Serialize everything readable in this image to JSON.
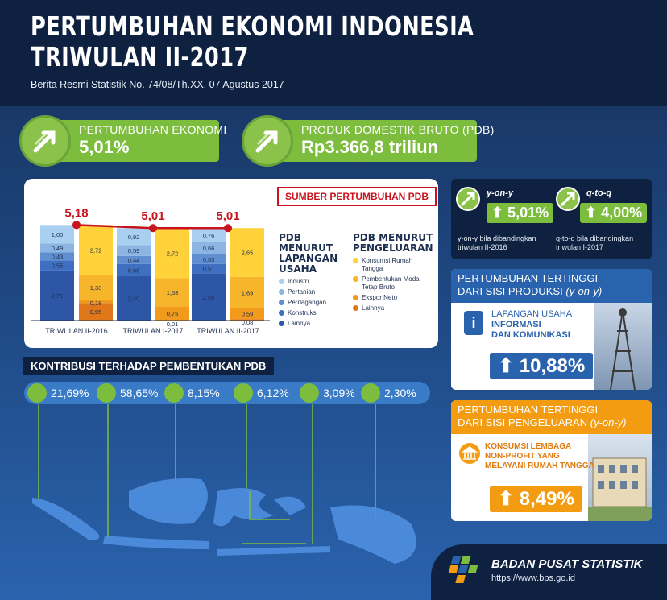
{
  "header": {
    "title_line1": "PERTUMBUHAN EKONOMI INDONESIA",
    "title_line2": "TRIWULAN II-2017",
    "subtitle": "Berita Resmi Statistik No. 74/08/Th.XX, 07 Agustus 2017"
  },
  "kpis": [
    {
      "label": "PERTUMBUHAN EKONOMI",
      "value": "5,01%"
    },
    {
      "label": "PRODUK DOMESTIK BRUTO (PDB)",
      "value": "Rp3.366,8 triliun"
    }
  ],
  "source_title": "SUMBER PERTUMBUHAN PDB",
  "legend_lapangan": {
    "head1": "PDB MENURUT",
    "head2": "LAPANGAN",
    "head3": "USAHA",
    "items": [
      "Industri",
      "Pertanian",
      "Perdagangan",
      "Konstruksi",
      "Lainnya"
    ]
  },
  "legend_pengeluaran": {
    "head1": "PDB MENURUT",
    "head2": "PENGELUARAN",
    "items": [
      "Konsumsi Rumah Tangga",
      "Pembentukan Modal Tetap Bruto",
      "Ekspor Neto",
      "Lainnya"
    ]
  },
  "colors": {
    "navy": "#0e2140",
    "green": "#7cbd3d",
    "orange": "#f39c12",
    "red": "#c8141e",
    "industri": "#a9d0f0",
    "pertanian": "#8cb5e3",
    "perdagangan": "#5f8fd1",
    "konstruksi": "#3f6fc0",
    "lainnya_blue": "#2d57a6",
    "konsumsi": "#ffd23a",
    "pmtb": "#f7b52b",
    "ekspor": "#f19a1c",
    "lainnya_orange": "#e0781a"
  },
  "chart_data": {
    "type": "bar",
    "title": "",
    "categories": [
      "TRIWULAN II-2016",
      "TRIWULAN I-2017",
      "TRIWULAN II-2017"
    ],
    "totals": [
      5.18,
      5.01,
      5.01
    ],
    "total_labels": [
      "5,18",
      "5,01",
      "5,01"
    ],
    "lapangan_usaha": [
      {
        "name": "Industri",
        "values": [
          1.0,
          0.92,
          0.76
        ],
        "labels": [
          "1,00",
          "0,92",
          "0,76"
        ]
      },
      {
        "name": "Pertanian",
        "values": [
          0.49,
          0.59,
          0.66
        ],
        "labels": [
          "0,49",
          "0,59",
          "0,66"
        ]
      },
      {
        "name": "Perdagangan",
        "values": [
          0.43,
          0.44,
          0.53
        ],
        "labels": [
          "0,43",
          "0,44",
          "0,53"
        ]
      },
      {
        "name": "Konstruksi",
        "values": [
          0.55,
          0.66,
          0.51
        ],
        "labels": [
          "0,55",
          "0,66",
          "0,51"
        ]
      },
      {
        "name": "Lainnya",
        "values": [
          2.71,
          2.4,
          2.55
        ],
        "labels": [
          "2,71",
          "2,40",
          "2,55"
        ]
      }
    ],
    "pengeluaran": [
      {
        "name": "Konsumsi Rumah Tangga",
        "values": [
          2.72,
          2.72,
          2.65
        ],
        "labels": [
          "2,72",
          "2,72",
          "2,65"
        ]
      },
      {
        "name": "Pembentukan Modal Tetap Bruto",
        "values": [
          1.33,
          1.53,
          1.69
        ],
        "labels": [
          "1,33",
          "1,53",
          "1,69"
        ]
      },
      {
        "name": "Ekspor Neto",
        "values": [
          0.18,
          0.75,
          0.59
        ],
        "labels": [
          "0,18",
          "0,75",
          "0,59"
        ]
      },
      {
        "name": "Lainnya",
        "values": [
          0.95,
          0.01,
          0.08
        ],
        "labels": [
          "0,95",
          "0,01",
          "0,08"
        ]
      }
    ],
    "ylim": [
      0,
      5.5
    ]
  },
  "yoy": {
    "label": "y-on-y",
    "value": "5,01%",
    "note": "y-on-y bila dibandingkan triwulan II-2016"
  },
  "qtq": {
    "label": "q-to-q",
    "value": "4,00%",
    "note": "q-to-q bila dibandingkan triwulan I-2017"
  },
  "produksi": {
    "head1": "PERTUMBUHAN TERTINGGI",
    "head2": "DARI SISI PRODUKSI",
    "head_suffix": "(y-on-y)",
    "sector_line1": "LAPANGAN USAHA",
    "sector_line2": "INFORMASI",
    "sector_line3": "DAN KOMUNIKASI",
    "value": "10,88%"
  },
  "pengeluaran_card": {
    "head1": "PERTUMBUHAN TERTINGGI",
    "head2": "DARI SISI PENGELUARAN",
    "head_suffix": "(y-on-y)",
    "sector_line1": "KONSUMSI LEMBAGA",
    "sector_line2": "NON-PROFIT YANG",
    "sector_line3": "MELAYANI RUMAH TANGGA",
    "value": "8,49%"
  },
  "kontribusi": {
    "title": "KONTRIBUSI TERHADAP PEMBENTUKAN PDB",
    "items": [
      "21,69%",
      "58,65%",
      "8,15%",
      "6,12%",
      "3,09%",
      "2,30%"
    ]
  },
  "footer": {
    "org": "BADAN PUSAT STATISTIK",
    "url": "https://www.bps.go.id"
  }
}
